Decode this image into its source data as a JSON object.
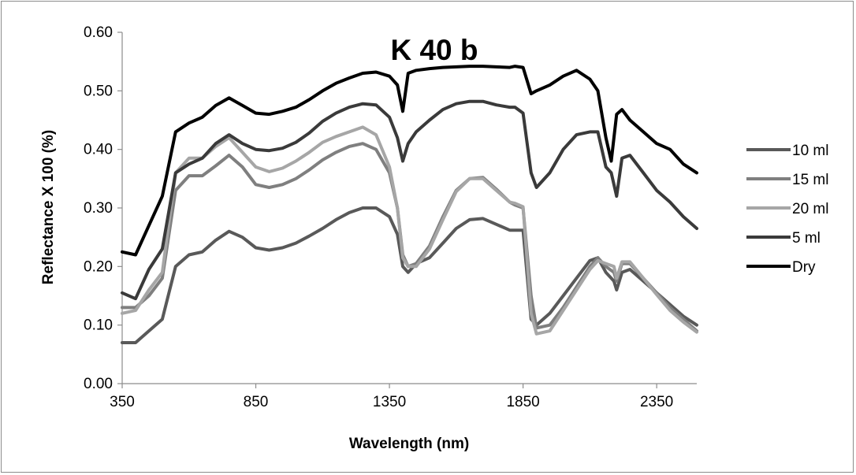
{
  "chart_data": {
    "type": "line",
    "title": "K 40 b",
    "xlabel": "Wavelength (nm)",
    "ylabel": "Reflectance X 100 (%)",
    "xlim": [
      350,
      2500
    ],
    "ylim": [
      0,
      0.6
    ],
    "xticks": [
      "350",
      "850",
      "1350",
      "1850",
      "2350"
    ],
    "yticks": [
      "0.00",
      "0.10",
      "0.20",
      "0.30",
      "0.40",
      "0.50",
      "0.60"
    ],
    "grid": false,
    "legend_position": "right",
    "series": [
      {
        "name": "10 ml",
        "color": "#595959",
        "x": [
          350,
          400,
          450,
          500,
          550,
          600,
          650,
          700,
          750,
          800,
          850,
          900,
          950,
          1000,
          1050,
          1100,
          1150,
          1200,
          1250,
          1300,
          1350,
          1380,
          1400,
          1420,
          1450,
          1500,
          1550,
          1600,
          1650,
          1700,
          1750,
          1800,
          1820,
          1850,
          1880,
          1900,
          1950,
          2000,
          2050,
          2100,
          2130,
          2160,
          2190,
          2200,
          2220,
          2250,
          2300,
          2350,
          2400,
          2450,
          2500
        ],
        "values": [
          0.07,
          0.07,
          0.09,
          0.11,
          0.2,
          0.22,
          0.225,
          0.245,
          0.26,
          0.25,
          0.232,
          0.228,
          0.232,
          0.24,
          0.252,
          0.265,
          0.28,
          0.292,
          0.3,
          0.3,
          0.285,
          0.255,
          0.2,
          0.19,
          0.205,
          0.215,
          0.24,
          0.265,
          0.28,
          0.282,
          0.272,
          0.262,
          0.262,
          0.262,
          0.11,
          0.1,
          0.12,
          0.15,
          0.18,
          0.21,
          0.215,
          0.19,
          0.175,
          0.16,
          0.19,
          0.195,
          0.175,
          0.155,
          0.135,
          0.115,
          0.1
        ]
      },
      {
        "name": "15 ml",
        "color": "#7f7f7f",
        "x": [
          350,
          400,
          450,
          500,
          550,
          600,
          650,
          700,
          750,
          800,
          850,
          900,
          950,
          1000,
          1050,
          1100,
          1150,
          1200,
          1250,
          1300,
          1350,
          1380,
          1400,
          1420,
          1450,
          1500,
          1550,
          1600,
          1650,
          1700,
          1750,
          1800,
          1820,
          1850,
          1880,
          1900,
          1950,
          2000,
          2050,
          2100,
          2130,
          2160,
          2190,
          2200,
          2220,
          2250,
          2300,
          2350,
          2400,
          2450,
          2500
        ],
        "values": [
          0.13,
          0.13,
          0.15,
          0.18,
          0.33,
          0.355,
          0.355,
          0.372,
          0.39,
          0.37,
          0.34,
          0.335,
          0.34,
          0.35,
          0.365,
          0.382,
          0.395,
          0.405,
          0.41,
          0.4,
          0.36,
          0.3,
          0.22,
          0.2,
          0.205,
          0.235,
          0.285,
          0.33,
          0.35,
          0.352,
          0.332,
          0.31,
          0.305,
          0.3,
          0.15,
          0.095,
          0.1,
          0.13,
          0.165,
          0.2,
          0.215,
          0.2,
          0.19,
          0.175,
          0.205,
          0.205,
          0.18,
          0.155,
          0.13,
          0.11,
          0.09
        ]
      },
      {
        "name": "20 ml",
        "color": "#a6a6a6",
        "x": [
          350,
          400,
          450,
          500,
          550,
          600,
          650,
          700,
          750,
          800,
          850,
          900,
          950,
          1000,
          1050,
          1100,
          1150,
          1200,
          1250,
          1300,
          1350,
          1380,
          1400,
          1420,
          1450,
          1500,
          1550,
          1600,
          1650,
          1700,
          1750,
          1800,
          1820,
          1850,
          1880,
          1900,
          1950,
          2000,
          2050,
          2100,
          2130,
          2160,
          2190,
          2200,
          2220,
          2250,
          2300,
          2350,
          2400,
          2450,
          2500
        ],
        "values": [
          0.12,
          0.125,
          0.16,
          0.19,
          0.36,
          0.385,
          0.385,
          0.405,
          0.42,
          0.395,
          0.37,
          0.362,
          0.368,
          0.38,
          0.395,
          0.412,
          0.422,
          0.43,
          0.438,
          0.425,
          0.37,
          0.3,
          0.215,
          0.2,
          0.2,
          0.23,
          0.28,
          0.328,
          0.35,
          0.35,
          0.33,
          0.31,
          0.308,
          0.302,
          0.12,
          0.085,
          0.09,
          0.125,
          0.16,
          0.195,
          0.21,
          0.205,
          0.2,
          0.18,
          0.208,
          0.208,
          0.18,
          0.152,
          0.125,
          0.105,
          0.088
        ]
      },
      {
        "name": "5 ml",
        "color": "#3a3a3a",
        "x": [
          350,
          400,
          450,
          500,
          550,
          600,
          650,
          700,
          750,
          800,
          850,
          900,
          950,
          1000,
          1050,
          1100,
          1150,
          1200,
          1250,
          1300,
          1350,
          1380,
          1400,
          1420,
          1450,
          1500,
          1550,
          1600,
          1650,
          1700,
          1750,
          1800,
          1820,
          1850,
          1880,
          1900,
          1950,
          2000,
          2050,
          2100,
          2130,
          2160,
          2180,
          2200,
          2220,
          2250,
          2300,
          2350,
          2400,
          2450,
          2500
        ],
        "values": [
          0.155,
          0.145,
          0.195,
          0.23,
          0.36,
          0.375,
          0.385,
          0.41,
          0.425,
          0.41,
          0.4,
          0.398,
          0.402,
          0.412,
          0.428,
          0.448,
          0.462,
          0.472,
          0.478,
          0.476,
          0.455,
          0.42,
          0.38,
          0.41,
          0.43,
          0.45,
          0.468,
          0.478,
          0.482,
          0.482,
          0.476,
          0.472,
          0.472,
          0.462,
          0.36,
          0.335,
          0.36,
          0.4,
          0.425,
          0.43,
          0.43,
          0.37,
          0.36,
          0.32,
          0.385,
          0.39,
          0.36,
          0.33,
          0.31,
          0.285,
          0.265
        ]
      },
      {
        "name": "Dry",
        "color": "#000000",
        "x": [
          350,
          400,
          450,
          500,
          550,
          600,
          650,
          700,
          750,
          800,
          850,
          900,
          950,
          1000,
          1050,
          1100,
          1150,
          1200,
          1250,
          1300,
          1350,
          1380,
          1400,
          1420,
          1450,
          1500,
          1550,
          1600,
          1650,
          1700,
          1750,
          1800,
          1820,
          1850,
          1880,
          1900,
          1950,
          2000,
          2050,
          2100,
          2130,
          2160,
          2180,
          2200,
          2220,
          2250,
          2300,
          2350,
          2400,
          2450,
          2500
        ],
        "values": [
          0.225,
          0.22,
          0.27,
          0.32,
          0.43,
          0.445,
          0.455,
          0.475,
          0.488,
          0.475,
          0.462,
          0.46,
          0.465,
          0.472,
          0.485,
          0.5,
          0.513,
          0.522,
          0.53,
          0.532,
          0.525,
          0.51,
          0.465,
          0.53,
          0.535,
          0.538,
          0.54,
          0.541,
          0.542,
          0.542,
          0.541,
          0.54,
          0.542,
          0.54,
          0.495,
          0.5,
          0.51,
          0.525,
          0.535,
          0.52,
          0.5,
          0.42,
          0.38,
          0.46,
          0.468,
          0.45,
          0.43,
          0.41,
          0.4,
          0.375,
          0.36
        ]
      }
    ]
  }
}
